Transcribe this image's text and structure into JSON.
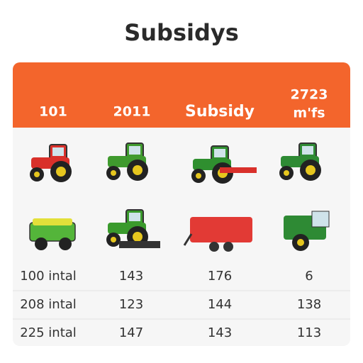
{
  "title": "Subsidys",
  "header": {
    "cells": [
      "101",
      "2011",
      "Subsidy",
      [
        "2723",
        "m'fs"
      ]
    ]
  },
  "table": {
    "rows": [
      [
        "100 intal",
        "143",
        "176",
        "6"
      ],
      [
        "208 intal",
        "123",
        "144",
        "138"
      ],
      [
        "225 intal",
        "147",
        "143",
        "113"
      ]
    ]
  }
}
